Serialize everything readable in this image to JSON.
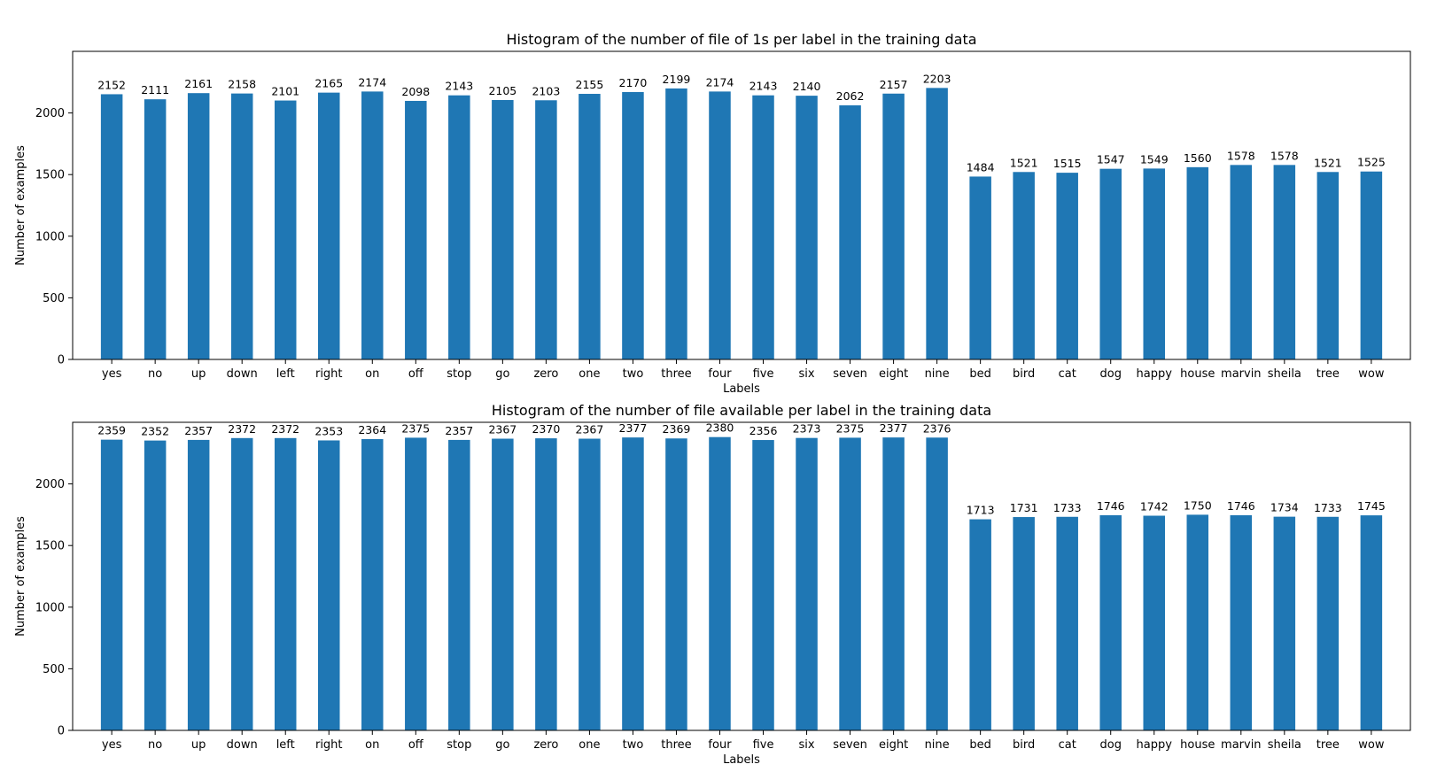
{
  "chart_data": [
    {
      "type": "bar",
      "title": "Histogram of the number of file of 1s per label in the training data",
      "xlabel": "Labels",
      "ylabel": "Number of examples",
      "ylim": [
        0,
        2500
      ],
      "yticks": [
        0,
        500,
        1000,
        1500,
        2000
      ],
      "categories": [
        "yes",
        "no",
        "up",
        "down",
        "left",
        "right",
        "on",
        "off",
        "stop",
        "go",
        "zero",
        "one",
        "two",
        "three",
        "four",
        "five",
        "six",
        "seven",
        "eight",
        "nine",
        "bed",
        "bird",
        "cat",
        "dog",
        "happy",
        "house",
        "marvin",
        "sheila",
        "tree",
        "wow"
      ],
      "values": [
        2152,
        2111,
        2161,
        2158,
        2101,
        2165,
        2174,
        2098,
        2143,
        2105,
        2103,
        2155,
        2170,
        2199,
        2174,
        2143,
        2140,
        2062,
        2157,
        2203,
        1484,
        1521,
        1515,
        1547,
        1549,
        1560,
        1578,
        1578,
        1521,
        1525
      ],
      "bar_color": "#1f77b4",
      "grid": false,
      "legend": false
    },
    {
      "type": "bar",
      "title": "Histogram of the number of file available per label in the training data",
      "xlabel": "Labels",
      "ylabel": "Number of examples",
      "ylim": [
        0,
        2500
      ],
      "yticks": [
        0,
        500,
        1000,
        1500,
        2000
      ],
      "categories": [
        "yes",
        "no",
        "up",
        "down",
        "left",
        "right",
        "on",
        "off",
        "stop",
        "go",
        "zero",
        "one",
        "two",
        "three",
        "four",
        "five",
        "six",
        "seven",
        "eight",
        "nine",
        "bed",
        "bird",
        "cat",
        "dog",
        "happy",
        "house",
        "marvin",
        "sheila",
        "tree",
        "wow"
      ],
      "values": [
        2359,
        2352,
        2357,
        2372,
        2372,
        2353,
        2364,
        2375,
        2357,
        2367,
        2370,
        2367,
        2377,
        2369,
        2380,
        2356,
        2373,
        2375,
        2377,
        2376,
        1713,
        1731,
        1733,
        1746,
        1742,
        1750,
        1746,
        1734,
        1733,
        1745
      ],
      "bar_color": "#1f77b4",
      "grid": false,
      "legend": false
    }
  ]
}
